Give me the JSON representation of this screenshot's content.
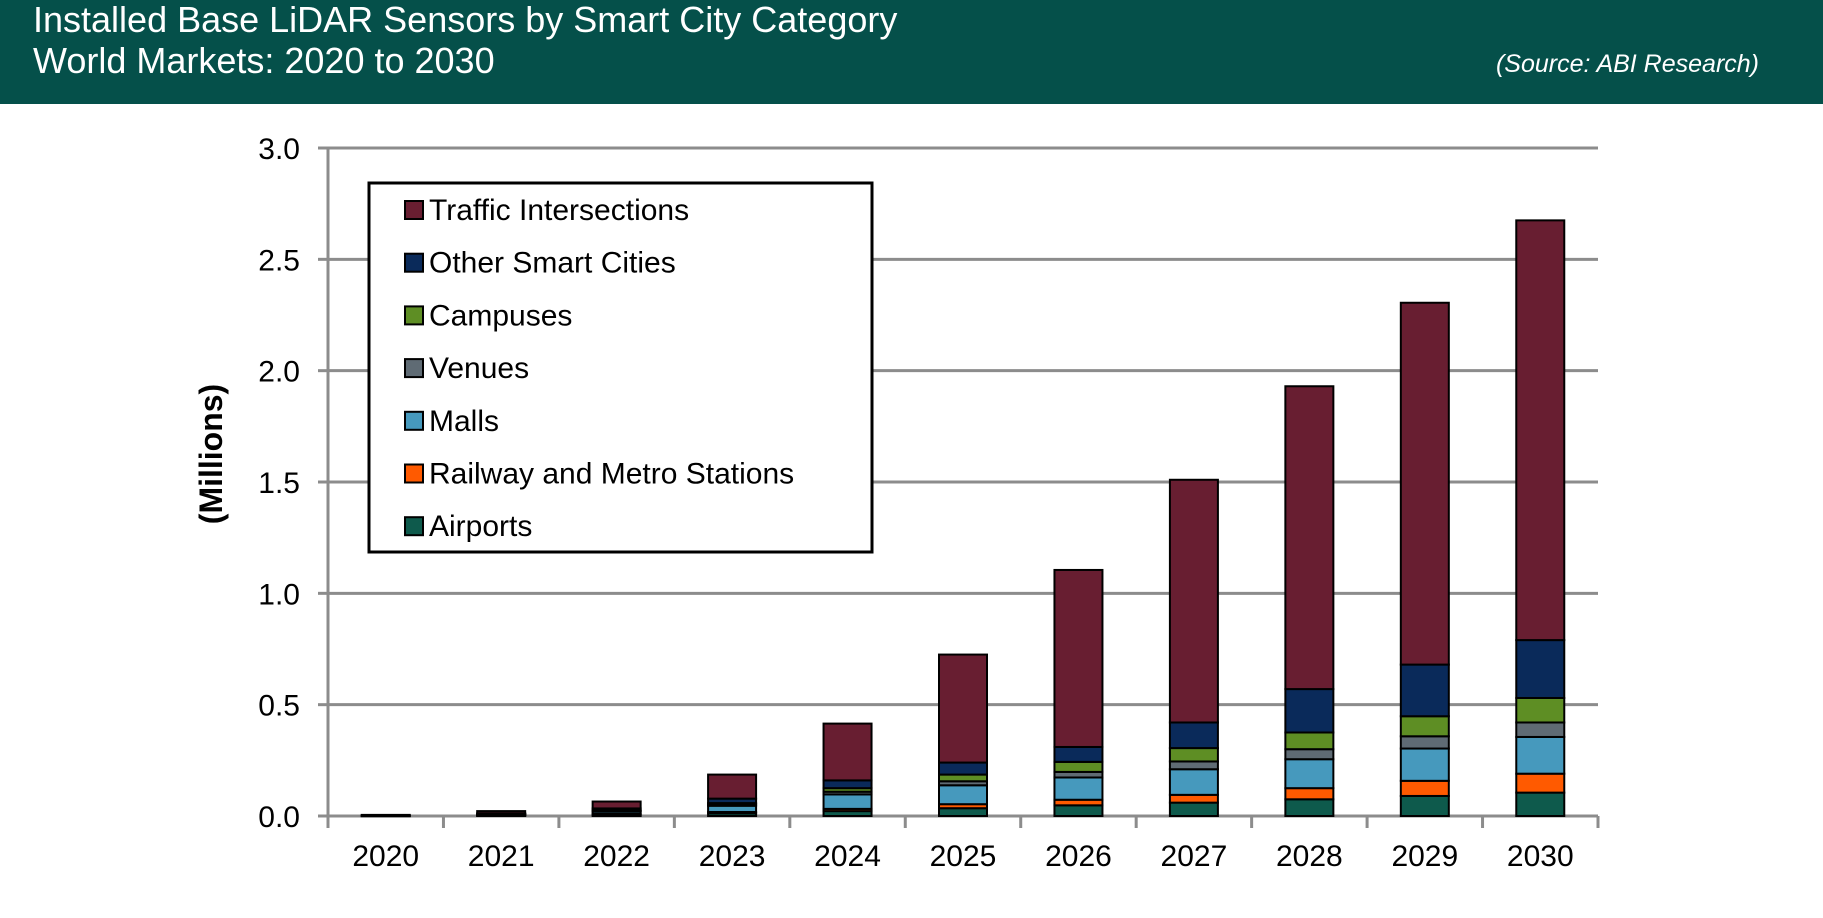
{
  "header": {
    "title_line1": "Installed Base LiDAR Sensors by Smart City Category",
    "title_line2": "World Markets: 2020 to 2030",
    "source": "(Source: ABI Research)",
    "background_color": "#05504a"
  },
  "chart_data": {
    "type": "bar",
    "stacked": true,
    "title": "Installed Base LiDAR Sensors by Smart City Category",
    "subtitle": "World Markets: 2020 to 2030",
    "xlabel": "",
    "ylabel": "(Millions)",
    "ylim": [
      0,
      3.0
    ],
    "yticks": [
      "0.0",
      "0.5",
      "1.0",
      "1.5",
      "2.0",
      "2.5",
      "3.0"
    ],
    "grid": true,
    "legend_position": "top-left",
    "categories": [
      "2020",
      "2021",
      "2022",
      "2023",
      "2024",
      "2025",
      "2026",
      "2027",
      "2028",
      "2029",
      "2030"
    ],
    "series": [
      {
        "name": "Airports",
        "color": "#0e5a4c",
        "values": [
          0.001,
          0.003,
          0.006,
          0.012,
          0.022,
          0.035,
          0.048,
          0.06,
          0.075,
          0.09,
          0.105
        ]
      },
      {
        "name": "Railway and Metro Stations",
        "color": "#ff5a00",
        "values": [
          0.0,
          0.001,
          0.004,
          0.006,
          0.01,
          0.018,
          0.025,
          0.035,
          0.05,
          0.068,
          0.085
        ]
      },
      {
        "name": "Malls",
        "color": "#4699bd",
        "values": [
          0.001,
          0.003,
          0.01,
          0.028,
          0.065,
          0.085,
          0.1,
          0.115,
          0.13,
          0.145,
          0.165
        ]
      },
      {
        "name": "Venues",
        "color": "#5f6b74",
        "values": [
          0.0,
          0.001,
          0.003,
          0.006,
          0.012,
          0.018,
          0.025,
          0.035,
          0.045,
          0.055,
          0.065
        ]
      },
      {
        "name": "Campuses",
        "color": "#5e8e24",
        "values": [
          0.0,
          0.001,
          0.003,
          0.006,
          0.016,
          0.03,
          0.045,
          0.06,
          0.075,
          0.09,
          0.11
        ]
      },
      {
        "name": "Other Smart Cities",
        "color": "#0a2a5a",
        "values": [
          0.0,
          0.003,
          0.008,
          0.02,
          0.035,
          0.054,
          0.067,
          0.115,
          0.195,
          0.232,
          0.26
        ]
      },
      {
        "name": "Traffic Intersections",
        "color": "#681e31",
        "values": [
          0.003,
          0.01,
          0.031,
          0.108,
          0.255,
          0.485,
          0.795,
          1.09,
          1.36,
          1.625,
          1.885
        ]
      }
    ]
  }
}
